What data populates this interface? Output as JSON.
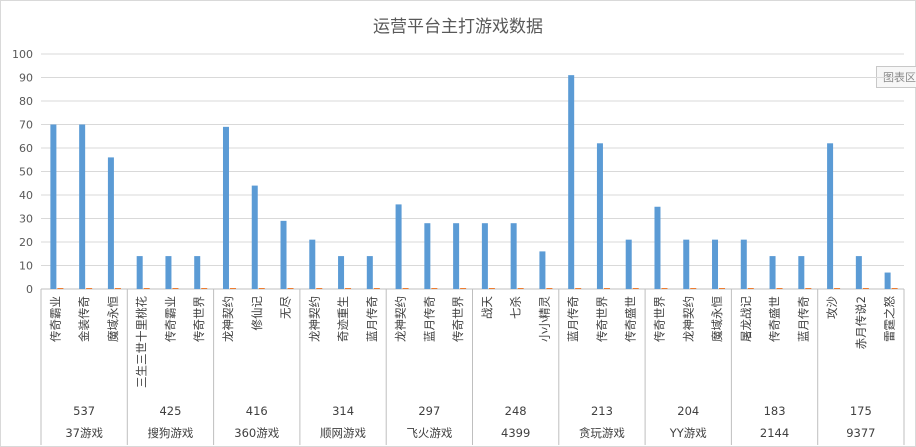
{
  "chart_data": {
    "type": "bar",
    "title": "运营平台主打游戏数据",
    "xlabel": "",
    "ylabel": "",
    "ylim": [
      0,
      100
    ],
    "yticks": [
      0,
      10,
      20,
      30,
      40,
      50,
      60,
      70,
      80,
      90,
      100
    ],
    "grid": true,
    "legend": "none",
    "colors": {
      "primary": "#5b9bd5",
      "secondary": "#ed7d31",
      "grid": "#d9d9d9",
      "axis": "#bfbfbf"
    },
    "groups": [
      {
        "platform": "37游戏",
        "total": "537",
        "games": [
          "传奇霸业",
          "金装传奇",
          "魔域永恒"
        ],
        "values": [
          70,
          70,
          56
        ]
      },
      {
        "platform": "搜狗游戏",
        "total": "425",
        "games": [
          "三生三世十里桃花",
          "传奇霸业",
          "传奇世界"
        ],
        "values": [
          14,
          14,
          14
        ]
      },
      {
        "platform": "360游戏",
        "total": "416",
        "games": [
          "龙神契约",
          "修仙记",
          "无尽"
        ],
        "values": [
          69,
          44,
          29
        ]
      },
      {
        "platform": "顺网游戏",
        "total": "314",
        "games": [
          "龙神契约",
          "奇迹重生",
          "蓝月传奇"
        ],
        "values": [
          21,
          14,
          14
        ]
      },
      {
        "platform": "飞火游戏",
        "total": "297",
        "games": [
          "龙神契约",
          "蓝月传奇",
          "传奇世界"
        ],
        "values": [
          36,
          28,
          28
        ]
      },
      {
        "platform": "4399",
        "total": "248",
        "games": [
          "战天",
          "七杀",
          "小小精灵"
        ],
        "values": [
          28,
          28,
          16
        ]
      },
      {
        "platform": "贪玩游戏",
        "total": "213",
        "games": [
          "蓝月传奇",
          "传奇世界",
          "传奇盛世"
        ],
        "values": [
          91,
          62,
          21
        ]
      },
      {
        "platform": "YY游戏",
        "total": "204",
        "games": [
          "传奇世界",
          "龙神契约",
          "魔域永恒"
        ],
        "values": [
          35,
          21,
          21
        ]
      },
      {
        "platform": "2144",
        "total": "183",
        "games": [
          "屠龙战记",
          "传奇盛世",
          "蓝月传奇"
        ],
        "values": [
          21,
          14,
          14
        ]
      },
      {
        "platform": "9377",
        "total": "175",
        "games": [
          "攻沙",
          "赤月传说2",
          "雷霆之怒"
        ],
        "values": [
          62,
          14,
          7
        ]
      }
    ]
  },
  "ui": {
    "tooltip_tag": "图表区"
  }
}
